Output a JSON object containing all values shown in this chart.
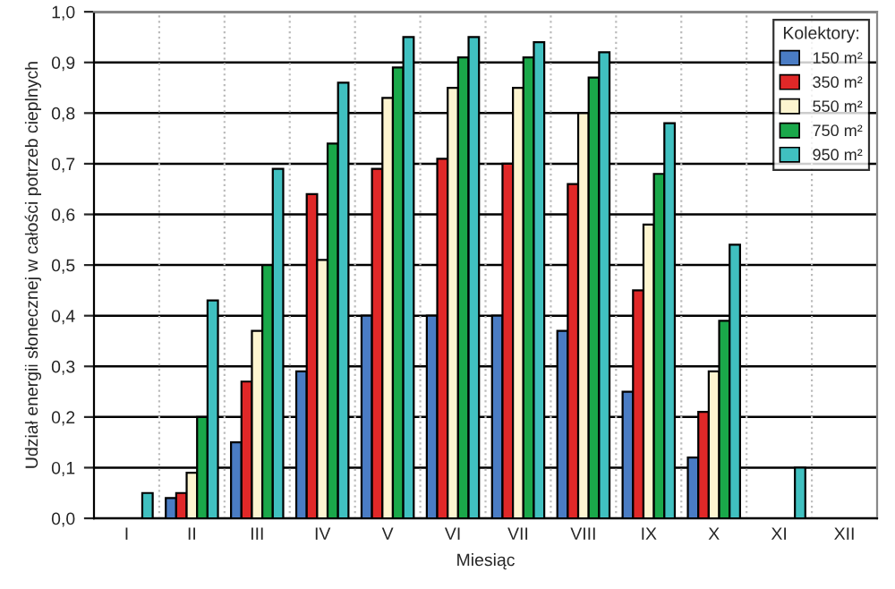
{
  "chart_data": {
    "type": "bar",
    "xlabel": "Miesiąc",
    "ylabel": "Udział energii słonecznej w całości potrzeb cieplnych",
    "legend_title": "Kolektory:",
    "categories": [
      "I",
      "II",
      "III",
      "IV",
      "V",
      "VI",
      "VII",
      "VIII",
      "IX",
      "X",
      "XI",
      "XII"
    ],
    "series": [
      {
        "name": "150 m²",
        "color": "#4a7cc4",
        "values": [
          null,
          0.04,
          0.15,
          0.29,
          0.4,
          0.4,
          0.4,
          0.37,
          0.25,
          0.12,
          null,
          null
        ]
      },
      {
        "name": "350 m²",
        "color": "#e02828",
        "values": [
          null,
          0.05,
          0.27,
          0.64,
          0.69,
          0.71,
          0.7,
          0.66,
          0.45,
          0.21,
          null,
          null
        ]
      },
      {
        "name": "550 m²",
        "color": "#fdf5d0",
        "values": [
          null,
          0.09,
          0.37,
          0.51,
          0.83,
          0.85,
          0.85,
          0.8,
          0.58,
          0.29,
          null,
          null
        ]
      },
      {
        "name": "750 m²",
        "color": "#1aa84a",
        "values": [
          null,
          0.2,
          0.5,
          0.74,
          0.89,
          0.91,
          0.91,
          0.87,
          0.68,
          0.39,
          null,
          null
        ]
      },
      {
        "name": "950 m²",
        "color": "#40c0c0",
        "values": [
          0.05,
          0.43,
          0.69,
          0.86,
          0.95,
          0.95,
          0.94,
          0.92,
          0.78,
          0.54,
          0.1,
          null
        ]
      }
    ],
    "ylim": [
      0,
      1.0
    ],
    "yticks": [
      {
        "value": 0,
        "label": "0,0"
      },
      {
        "value": 0.1,
        "label": "0,1"
      },
      {
        "value": 0.2,
        "label": "0,2"
      },
      {
        "value": 0.3,
        "label": "0,3"
      },
      {
        "value": 0.4,
        "label": "0,4"
      },
      {
        "value": 0.5,
        "label": "0,5"
      },
      {
        "value": 0.6,
        "label": "0,6"
      },
      {
        "value": 0.7,
        "label": "0,7"
      },
      {
        "value": 0.8,
        "label": "0,8"
      },
      {
        "value": 0.9,
        "label": "0,9"
      },
      {
        "value": 1.0,
        "label": "1,0"
      }
    ],
    "grid": "y",
    "legend": "top right"
  }
}
